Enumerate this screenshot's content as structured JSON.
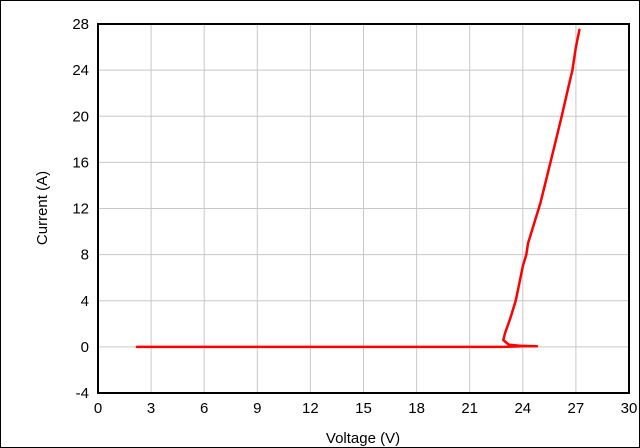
{
  "chart_data": {
    "type": "line",
    "title": "",
    "xlabel": "Voltage (V)",
    "ylabel": "Current (A)",
    "xlim": [
      0,
      30
    ],
    "ylim": [
      -4,
      28
    ],
    "x_ticks": [
      0,
      3,
      6,
      9,
      12,
      15,
      18,
      21,
      24,
      27,
      30
    ],
    "y_ticks": [
      -4,
      0,
      4,
      8,
      12,
      16,
      20,
      24,
      28
    ],
    "grid": true,
    "legend": "none",
    "series": [
      {
        "color": "#ff0000",
        "points": [
          [
            2.2,
            0.0
          ],
          [
            5.0,
            0.0
          ],
          [
            10.0,
            0.0
          ],
          [
            15.0,
            0.0
          ],
          [
            20.0,
            0.0
          ],
          [
            22.8,
            0.0
          ],
          [
            24.0,
            0.05
          ],
          [
            24.8,
            0.05
          ],
          [
            23.8,
            0.1
          ],
          [
            23.2,
            0.2
          ],
          [
            22.9,
            0.6
          ],
          [
            23.0,
            1.2
          ],
          [
            23.3,
            2.5
          ],
          [
            23.6,
            4.0
          ],
          [
            23.8,
            5.5
          ],
          [
            24.0,
            7.0
          ],
          [
            24.2,
            8.0
          ],
          [
            24.3,
            9.0
          ],
          [
            24.6,
            10.5
          ],
          [
            25.0,
            12.5
          ],
          [
            25.4,
            15.0
          ],
          [
            25.8,
            17.5
          ],
          [
            26.2,
            20.0
          ],
          [
            26.5,
            22.0
          ],
          [
            26.8,
            24.0
          ],
          [
            27.0,
            26.0
          ],
          [
            27.2,
            27.5
          ]
        ]
      }
    ]
  }
}
